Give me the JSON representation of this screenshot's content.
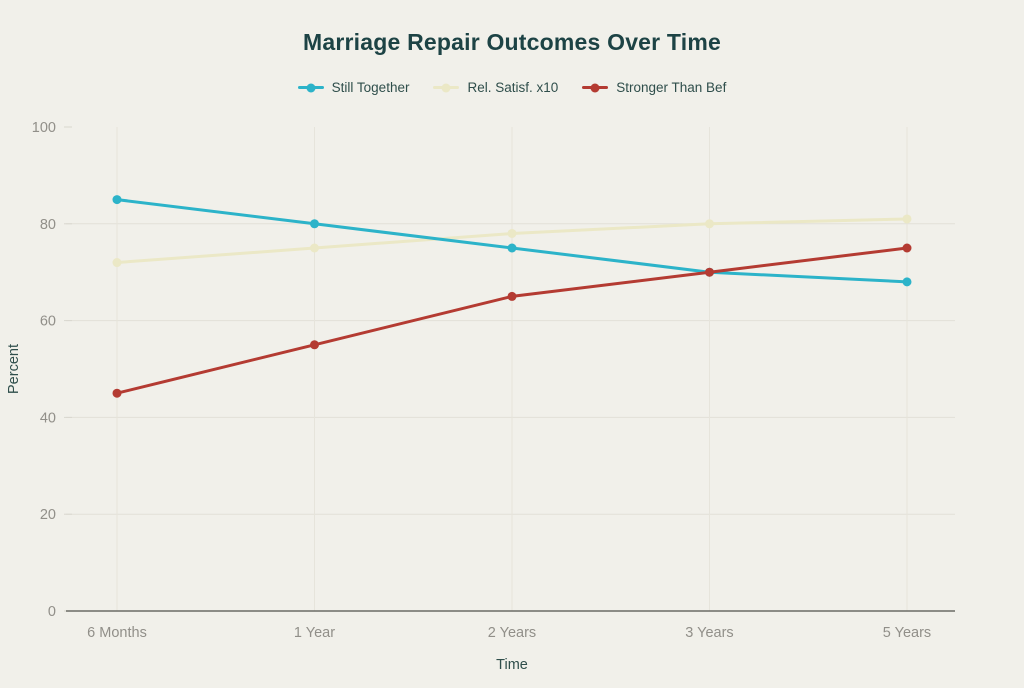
{
  "colors": {
    "background": "#f1f0ea",
    "title": "#1d4345",
    "legend_text": "#2f4e4b",
    "axis_text": "#918f89",
    "axis_line": "#6b6a64",
    "gridline_h": "#e2e0d7",
    "gridline_v": "#e6e4db"
  },
  "chart_data": {
    "type": "line",
    "title": "Marriage Repair Outcomes Over Time",
    "xlabel": "Time",
    "ylabel": "Percent",
    "categories": [
      "6 Months",
      "1 Year",
      "2 Years",
      "3 Years",
      "5 Years"
    ],
    "series": [
      {
        "name": "Still Together",
        "color": "#2cb3c9",
        "values": [
          85,
          80,
          75,
          70,
          68
        ]
      },
      {
        "name": "Rel. Satisf. x10",
        "color": "#ebe8c6",
        "values": [
          72,
          75,
          78,
          80,
          81
        ]
      },
      {
        "name": "Stronger Than Bef",
        "color": "#b43b32",
        "values": [
          45,
          55,
          65,
          70,
          75
        ]
      }
    ],
    "ylim": [
      0,
      100
    ],
    "yticks": [
      0,
      20,
      40,
      60,
      80,
      100
    ],
    "grid": true,
    "legend_position": "top"
  }
}
